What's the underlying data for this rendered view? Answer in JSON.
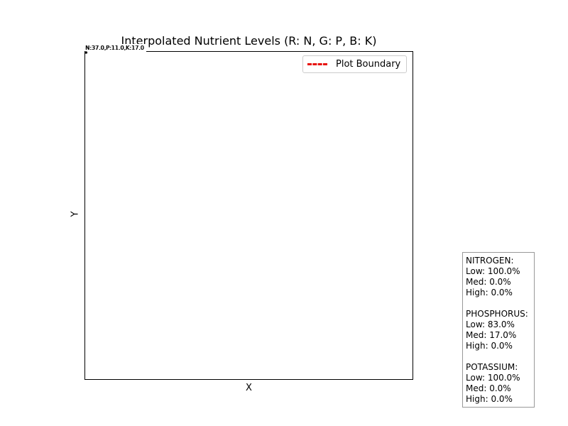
{
  "chart_data": {
    "type": "scatter",
    "title": "Interpolated Nutrient Levels (R: N, G: P, B: K)",
    "xlabel": "X",
    "ylabel": "Y",
    "grid": false,
    "legend": {
      "location": "top-right",
      "entries": [
        {
          "label": "Plot Boundary",
          "color": "#e8120c",
          "style": "dashed"
        }
      ]
    },
    "points": [
      {
        "label": "N:37.0,P:11.0,K:17.0",
        "color": "#000000"
      },
      {
        "label": "N:37.0,P:11.0,K:17.0",
        "color": "#000000"
      }
    ]
  },
  "stats_box": {
    "groups": [
      {
        "title": "NITROGEN:",
        "lines": [
          "Low: 100.0%",
          "Med: 0.0%",
          "High: 0.0%"
        ]
      },
      {
        "title": "PHOSPHORUS:",
        "lines": [
          "Low: 83.0%",
          "Med: 17.0%",
          "High: 0.0%"
        ]
      },
      {
        "title": "POTASSIUM:",
        "lines": [
          "Low: 100.0%",
          "Med: 0.0%",
          "High: 0.0%"
        ]
      }
    ]
  }
}
